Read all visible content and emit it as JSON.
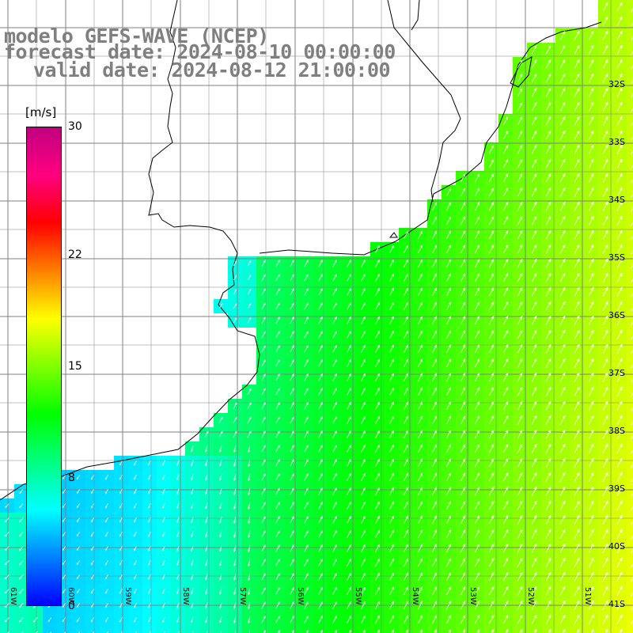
{
  "title": {
    "line1": "modelo GEFS-WAVE (NCEP)",
    "line2": "forecast date: 2024-08-10 00:00:00",
    "line3": "valid date: 2024-08-12 21:00:00"
  },
  "colorbar": {
    "units": "[m/s]",
    "ticks": [
      {
        "label": "30",
        "value": 30
      },
      {
        "label": "22",
        "value": 22
      },
      {
        "label": "15",
        "value": 15
      },
      {
        "label": "8",
        "value": 8
      },
      {
        "label": "0",
        "value": 0
      }
    ],
    "range": [
      0,
      30
    ],
    "colors": [
      "#0000ff",
      "#0080ff",
      "#00ffff",
      "#00ff80",
      "#00ff00",
      "#80ff00",
      "#ffff00",
      "#ff8000",
      "#ff0000",
      "#ff0080",
      "#c0007f"
    ]
  },
  "lat_labels": [
    "32S",
    "33S",
    "34S",
    "35S",
    "36S",
    "37S",
    "38S",
    "39S",
    "40S",
    "41S"
  ],
  "lon_labels": [
    "61W",
    "60W",
    "59W",
    "58W",
    "57W",
    "56W",
    "55W",
    "54W",
    "53W",
    "52W",
    "51W"
  ],
  "colors": {
    "land": "#ffffff",
    "coast": "#000000",
    "grid": "#808080",
    "arrows": "#ffffff",
    "title": "#7f7f7f"
  }
}
